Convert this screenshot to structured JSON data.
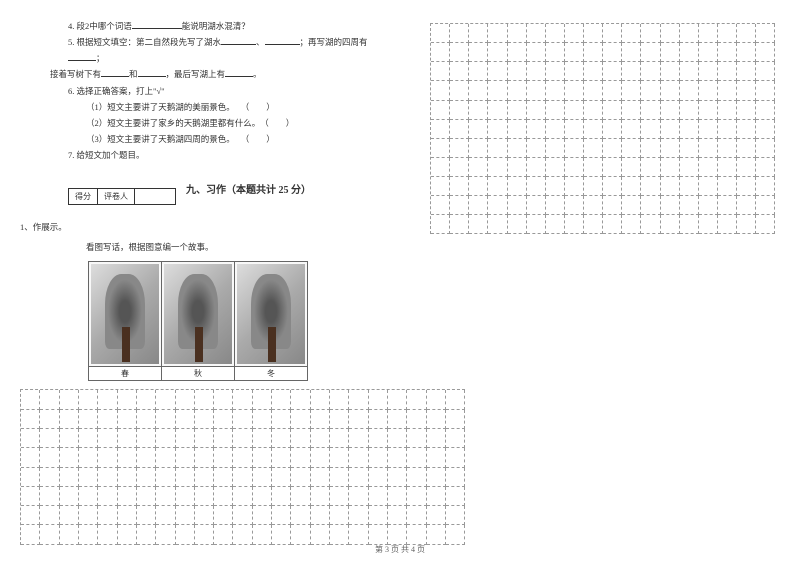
{
  "questions": {
    "q4": {
      "prefix": "4. 段2中哪个词语",
      "suffix": "能说明湖水混清？"
    },
    "q5": {
      "prefix": "5. 根据短文填空：第二自然段先写了湖水",
      "mid1": "、",
      "mid2": "；再写湖的四周有",
      "mid3": "；",
      "line2a": "接着写树下有",
      "line2b": "和",
      "line2c": "，最后写湖上有",
      "line2d": "。"
    },
    "q6": {
      "title": "6. 选择正确答案，打上\"√\"",
      "opt1": "（1）短文主要讲了天鹅湖的美丽景色。",
      "opt2": "（2）短文主要讲了家乡的天鹅湖里都有什么。",
      "opt3": "（3）短文主要讲了天鹅湖四周的景色。"
    },
    "q7": "7. 给短文加个题目。"
  },
  "score_labels": {
    "score": "得分",
    "grader": "评卷人"
  },
  "section": {
    "title": "九、习作（本题共计 25 分）"
  },
  "exercise": {
    "num": "1、作展示。",
    "instruction": "看图写话，根据图意编一个故事。"
  },
  "seasons": {
    "spring": "春",
    "autumn": "秋",
    "winter": "冬"
  },
  "footer": "第 3 页 共 4 页",
  "grid": {
    "left_cols": 23,
    "left_rows": 8,
    "right_cols": 18,
    "right_rows": 11,
    "border_color": "#999999"
  }
}
